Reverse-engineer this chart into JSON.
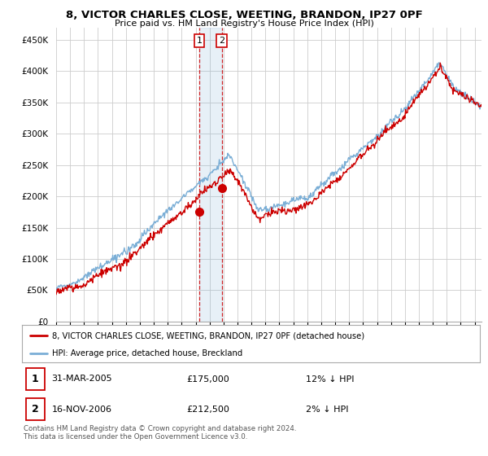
{
  "title": "8, VICTOR CHARLES CLOSE, WEETING, BRANDON, IP27 0PF",
  "subtitle": "Price paid vs. HM Land Registry's House Price Index (HPI)",
  "ylabel_ticks": [
    "£0",
    "£50K",
    "£100K",
    "£150K",
    "£200K",
    "£250K",
    "£300K",
    "£350K",
    "£400K",
    "£450K"
  ],
  "ytick_values": [
    0,
    50000,
    100000,
    150000,
    200000,
    250000,
    300000,
    350000,
    400000,
    450000
  ],
  "ylim": [
    0,
    470000
  ],
  "xlim_start": 1995.0,
  "xlim_end": 2025.5,
  "purchase1_x": 2005.25,
  "purchase1_y": 175000,
  "purchase2_x": 2006.88,
  "purchase2_y": 212500,
  "purchase1_date": "31-MAR-2005",
  "purchase1_price": "£175,000",
  "purchase1_hpi": "12% ↓ HPI",
  "purchase2_date": "16-NOV-2006",
  "purchase2_price": "£212,500",
  "purchase2_hpi": "2% ↓ HPI",
  "legend_line1": "8, VICTOR CHARLES CLOSE, WEETING, BRANDON, IP27 0PF (detached house)",
  "legend_line2": "HPI: Average price, detached house, Breckland",
  "footnote": "Contains HM Land Registry data © Crown copyright and database right 2024.\nThis data is licensed under the Open Government Licence v3.0.",
  "line_color_red": "#cc0000",
  "line_color_blue": "#7aaed6",
  "background_color": "#ffffff",
  "grid_color": "#cccccc"
}
